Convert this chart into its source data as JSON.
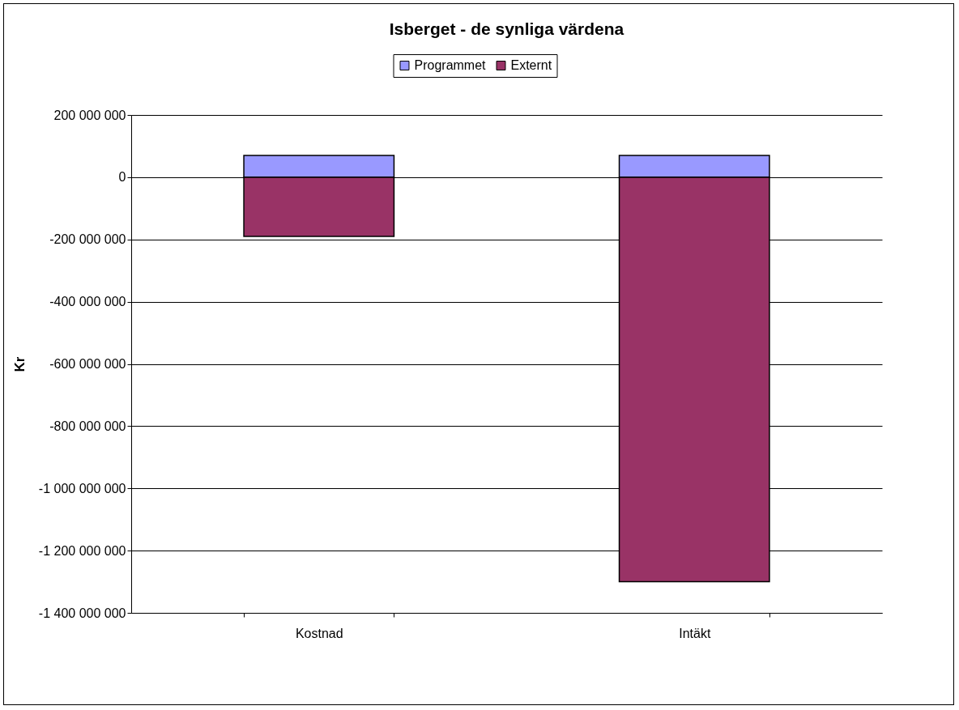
{
  "chart_data": {
    "type": "bar",
    "title": "Isberget - de synliga värdena",
    "ylabel": "Kr",
    "categories": [
      "Kostnad",
      "Intäkt"
    ],
    "stacked": true,
    "series": [
      {
        "name": "Programmet",
        "color": "#9999ff",
        "values": [
          70000000,
          70000000
        ]
      },
      {
        "name": "Externt",
        "color": "#993366",
        "values": [
          -190000000,
          -1300000000
        ]
      }
    ],
    "ylim": [
      -1400000000,
      200000000
    ],
    "yticks": [
      {
        "value": -1400000000,
        "label": "-1 400 000 000"
      },
      {
        "value": -1200000000,
        "label": "-1 200 000 000"
      },
      {
        "value": -1000000000,
        "label": "-1 000 000 000"
      },
      {
        "value": -800000000,
        "label": "-800 000 000"
      },
      {
        "value": -600000000,
        "label": "-600 000 000"
      },
      {
        "value": -400000000,
        "label": "-400 000 000"
      },
      {
        "value": -200000000,
        "label": "-200 000 000"
      },
      {
        "value": 0,
        "label": "0"
      },
      {
        "value": 200000000,
        "label": "200 000 000"
      }
    ],
    "grid": "y",
    "legend": "top"
  }
}
